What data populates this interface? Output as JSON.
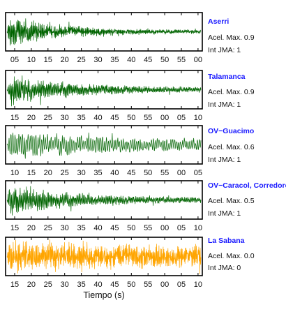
{
  "chart_data": [
    {
      "type": "line",
      "title": "Aserri",
      "info": {
        "accel": "Acel. Max. 0.9",
        "intensity": "Int JMA: 1"
      },
      "tick_labels": [
        "05",
        "10",
        "15",
        "20",
        "25",
        "30",
        "35",
        "40",
        "45",
        "50",
        "55",
        "00"
      ],
      "trace_color": "#006400",
      "signal": {
        "envelope_peak": 1.0,
        "decay": 3.6,
        "tail": 0.1,
        "freq": 1.0,
        "seed": 11
      }
    },
    {
      "type": "line",
      "title": "Talamanca",
      "info": {
        "accel": "Acel. Max. 0.9",
        "intensity": "Int JMA: 1"
      },
      "tick_labels": [
        "15",
        "20",
        "25",
        "30",
        "35",
        "40",
        "45",
        "50",
        "55",
        "00",
        "05",
        "10"
      ],
      "trace_color": "#006400",
      "signal": {
        "envelope_peak": 0.95,
        "decay": 3.0,
        "tail": 0.14,
        "freq": 0.85,
        "seed": 23
      }
    },
    {
      "type": "line",
      "title": "OV−Guacimo",
      "info": {
        "accel": "Acel. Max. 0.6",
        "intensity": "Int JMA: 1"
      },
      "tick_labels": [
        "10",
        "15",
        "20",
        "25",
        "30",
        "35",
        "40",
        "45",
        "50",
        "55",
        "00",
        "05"
      ],
      "trace_color": "#006400",
      "signal": {
        "envelope_peak": 0.8,
        "decay": 1.6,
        "tail": 0.3,
        "freq": 0.45,
        "seed": 37
      }
    },
    {
      "type": "line",
      "title": "OV−Caracol, Corredore",
      "info": {
        "accel": "Acel. Max. 0.5",
        "intensity": "Int JMA: 1"
      },
      "tick_labels": [
        "15",
        "20",
        "25",
        "30",
        "35",
        "40",
        "45",
        "50",
        "55",
        "00",
        "05",
        "10"
      ],
      "trace_color": "#006400",
      "signal": {
        "envelope_peak": 0.95,
        "decay": 2.6,
        "tail": 0.12,
        "freq": 0.8,
        "seed": 53
      }
    },
    {
      "type": "line",
      "title": "La Sabana",
      "info": {
        "accel": "Acel. Max. 0.0",
        "intensity": "Int JMA: 0"
      },
      "tick_labels": [
        "15",
        "20",
        "25",
        "30",
        "35",
        "40",
        "45",
        "50",
        "55",
        "00",
        "05",
        "10"
      ],
      "trace_color": "#FFA500",
      "signal": {
        "envelope_peak": 1.0,
        "decay": 0.9,
        "tail": 0.45,
        "freq": 1.1,
        "seed": 71
      }
    }
  ],
  "xlabel": "Tiempo (s)"
}
